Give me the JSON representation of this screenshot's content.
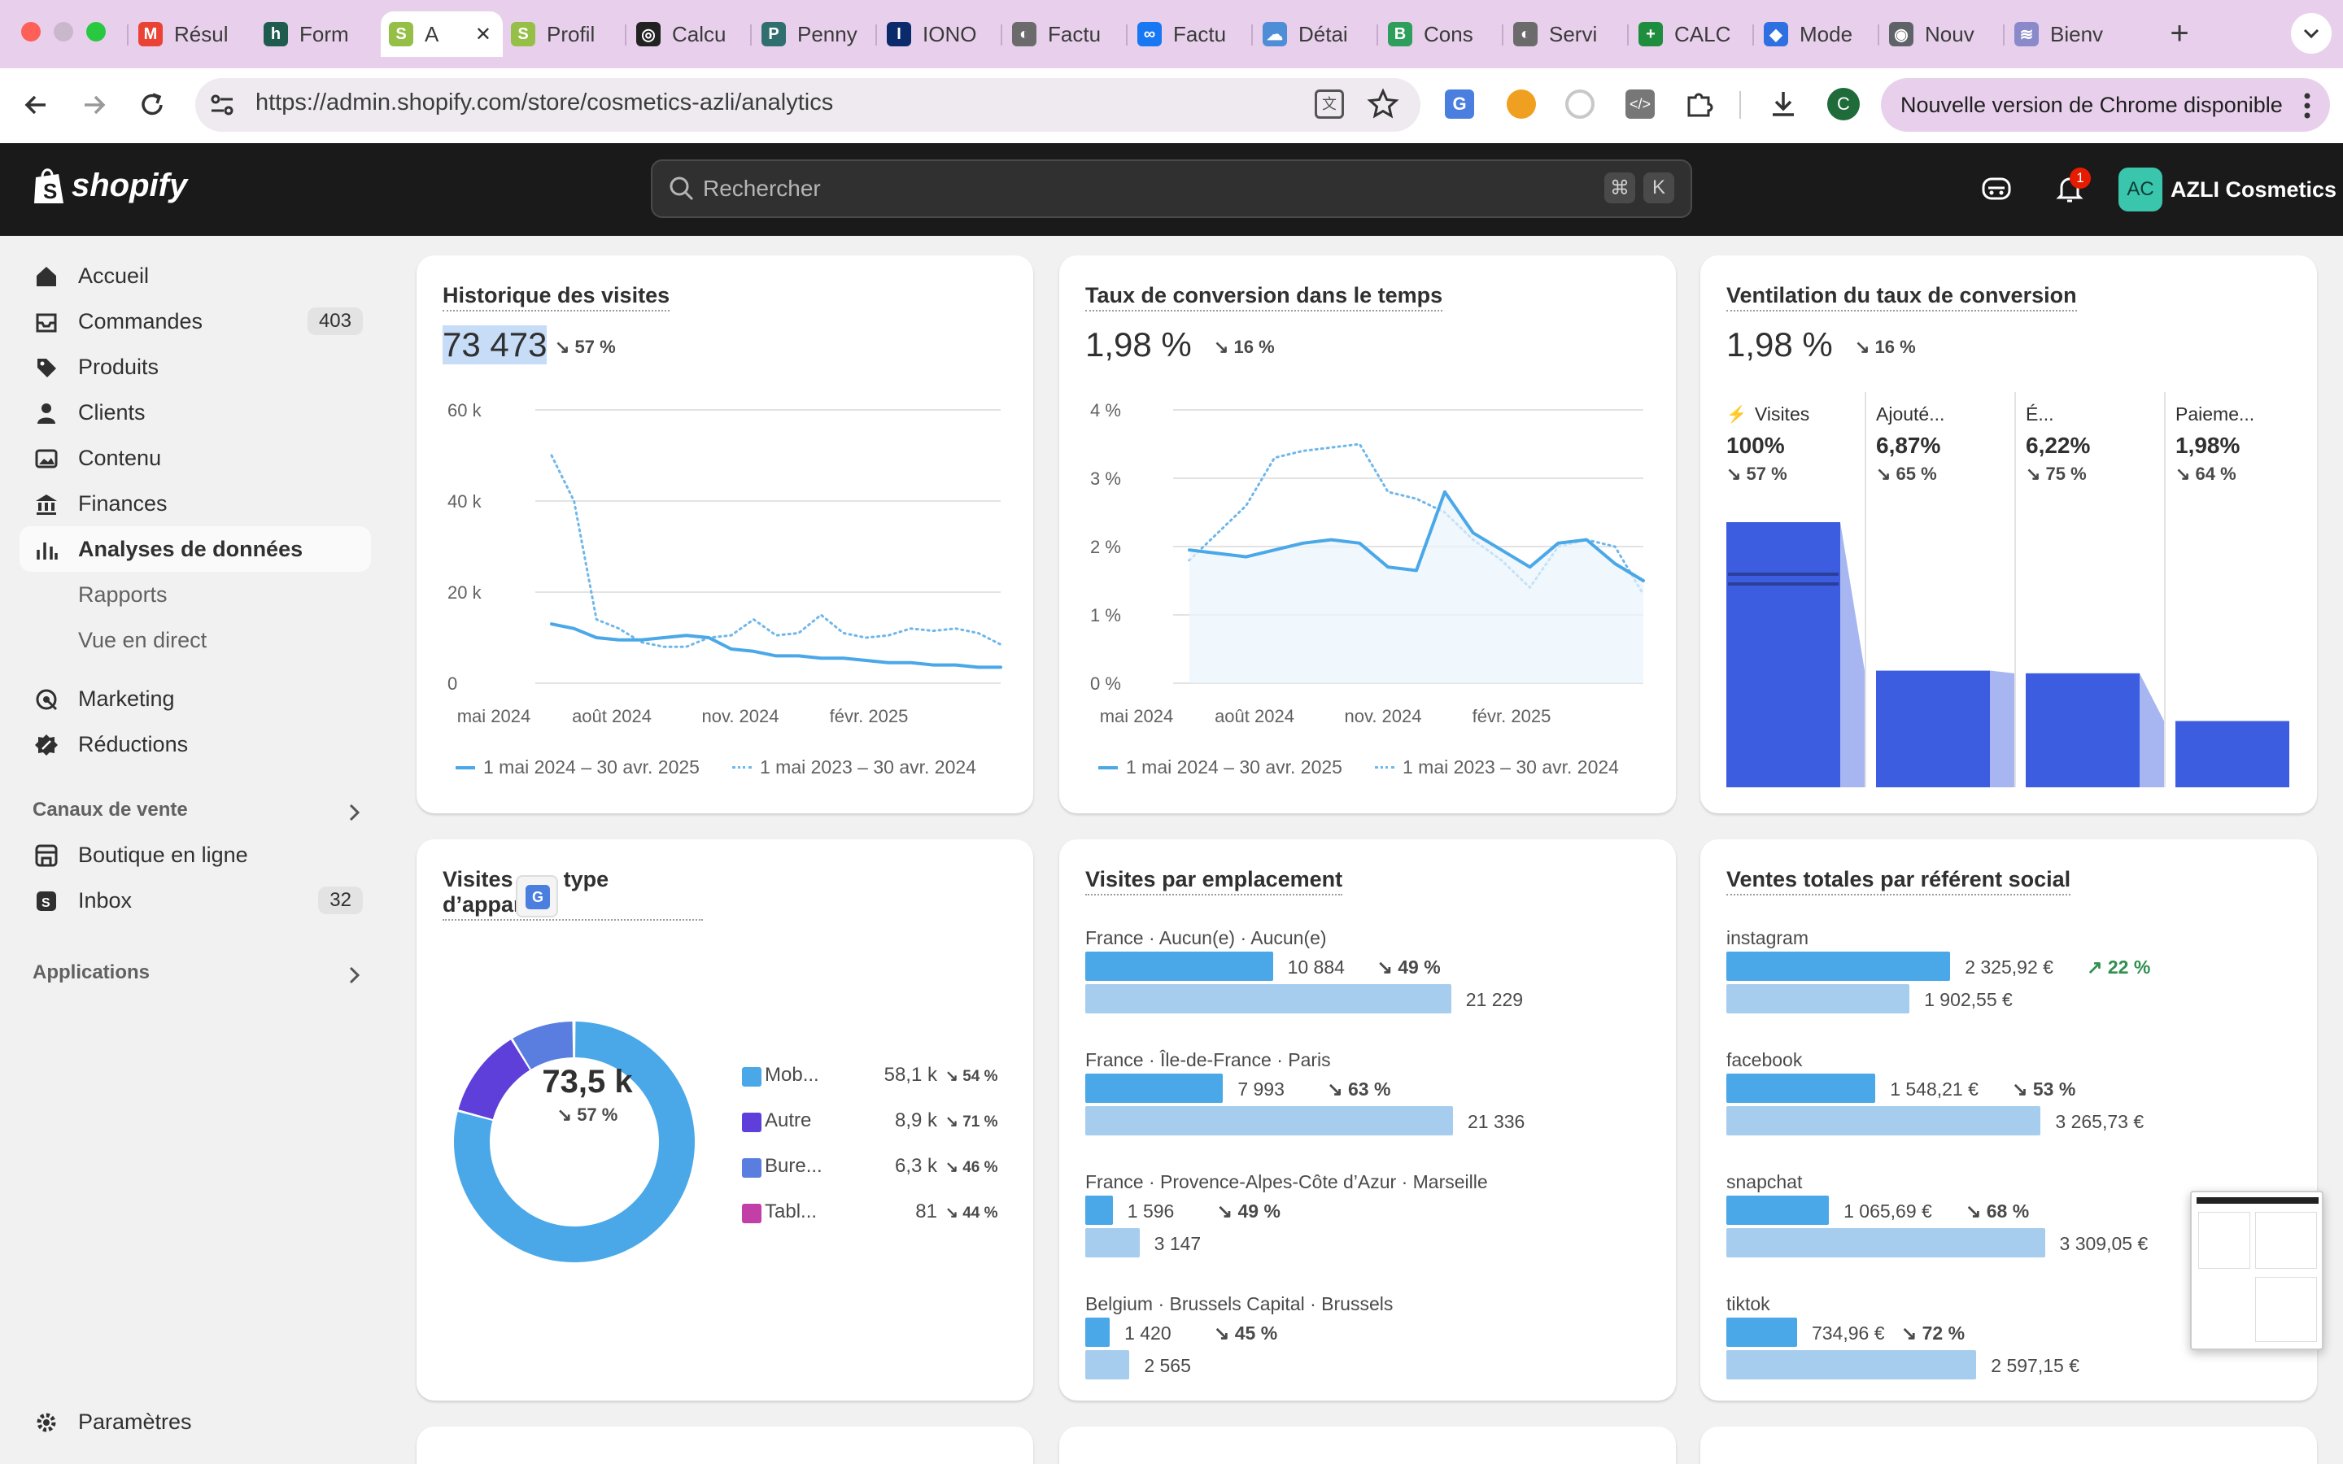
{
  "browser": {
    "tabs": [
      {
        "label": "Résul",
        "fav": "M",
        "color": "#ea4335"
      },
      {
        "label": "Form",
        "fav": "h",
        "color": "#1f5c4e"
      },
      {
        "label": "A",
        "fav": "S",
        "color": "#95bf47"
      },
      {
        "label": "Profil",
        "fav": "S",
        "color": "#95bf47"
      },
      {
        "label": "Calcu",
        "fav": "◎",
        "color": "#222222"
      },
      {
        "label": "Penny",
        "fav": "P",
        "color": "#2f6f6f"
      },
      {
        "label": "IONO",
        "fav": "I",
        "color": "#0b2a6b"
      },
      {
        "label": "Factu",
        "fav": "◐",
        "color": "#6b6b6b"
      },
      {
        "label": "Factu",
        "fav": "∞",
        "color": "#1877f2"
      },
      {
        "label": "Détai",
        "fav": "☁",
        "color": "#4f8ed6"
      },
      {
        "label": "Cons",
        "fav": "B",
        "color": "#2e9e5b"
      },
      {
        "label": "Servi",
        "fav": "◐",
        "color": "#6b6b6b"
      },
      {
        "label": "CALC",
        "fav": "+",
        "color": "#1e8e3e"
      },
      {
        "label": "Mode",
        "fav": "◆",
        "color": "#2f6fe0"
      },
      {
        "label": "Nouv",
        "fav": "◉",
        "color": "#5f6368"
      },
      {
        "label": "Bienv",
        "fav": "≋",
        "color": "#8a8acb"
      }
    ],
    "url": "https://admin.shopify.com/store/cosmetics-azli/analytics",
    "update_label": "Nouvelle version de Chrome disponible",
    "profile_initial": "C"
  },
  "shopify": {
    "logo_text": "shopify",
    "search_placeholder": "Rechercher",
    "kbd1": "⌘",
    "kbd2": "K",
    "notifications": "1",
    "store_initials": "AC",
    "store_name": "AZLI Cosmetics"
  },
  "sidebar": {
    "items": [
      {
        "label": "Accueil",
        "icon": "home-icon"
      },
      {
        "label": "Commandes",
        "icon": "orders-icon",
        "badge": "403"
      },
      {
        "label": "Produits",
        "icon": "tag-icon"
      },
      {
        "label": "Clients",
        "icon": "person-icon"
      },
      {
        "label": "Contenu",
        "icon": "content-icon"
      },
      {
        "label": "Finances",
        "icon": "bank-icon"
      },
      {
        "label": "Analyses de données",
        "icon": "analytics-icon"
      }
    ],
    "subitems": [
      "Rapports",
      "Vue en direct"
    ],
    "items2": [
      {
        "label": "Marketing",
        "icon": "target-icon"
      },
      {
        "label": "Réductions",
        "icon": "discount-icon"
      }
    ],
    "sales_channels": "Canaux de vente",
    "channels": [
      {
        "label": "Boutique en ligne",
        "icon": "store-icon"
      },
      {
        "label": "Inbox",
        "icon": "inbox-icon",
        "badge": "32"
      }
    ],
    "applications": "Applications",
    "settings": "Paramètres"
  },
  "cards": {
    "visits": {
      "title": "Historique des visites",
      "value": "73 473",
      "delta": "57 %",
      "legend_current": "1 mai 2024 – 30 avr. 2025",
      "legend_previous": "1 mai 2023 – 30 avr. 2024"
    },
    "conversion": {
      "title": "Taux de conversion dans le temps",
      "value": "1,98 %",
      "delta": "16 %",
      "legend_current": "1 mai 2024 – 30 avr. 2025",
      "legend_previous": "1 mai 2023 – 30 avr. 2024"
    },
    "funnel": {
      "title": "Ventilation du taux de conversion",
      "value": "1,98 %",
      "delta": "16 %",
      "steps": [
        {
          "label": "Visites",
          "value": "100%",
          "delta": "57 %",
          "fraction": 1
        },
        {
          "label": "Ajouté...",
          "value": "6,87%",
          "delta": "65 %",
          "fraction": 0.44
        },
        {
          "label": "É...",
          "value": "6,22%",
          "delta": "75 %",
          "fraction": 0.43
        },
        {
          "label": "Paieme...",
          "value": "1,98%",
          "delta": "64 %",
          "fraction": 0.25
        }
      ]
    },
    "devices": {
      "title_a": "Visites",
      "title_b": "type d’appareil",
      "center": "73,5 k",
      "center_delta": "57 %",
      "items": [
        {
          "label": "Mob...",
          "value": "58,1 k",
          "delta": "54 %",
          "color": "#4aa8e8"
        },
        {
          "label": "Autre",
          "value": "8,9 k",
          "delta": "71 %",
          "color": "#5f3fd9"
        },
        {
          "label": "Bure...",
          "value": "6,3 k",
          "delta": "46 %",
          "color": "#5a7ee0"
        },
        {
          "label": "Tabl...",
          "value": "81",
          "delta": "44 %",
          "color": "#c23fa8"
        }
      ]
    },
    "locations": {
      "title": "Visites par emplacement",
      "rows": [
        {
          "label": "France · Aucun(e) · Aucun(e)",
          "cur": "10 884",
          "prev": "21 229",
          "delta": "49 %"
        },
        {
          "label": "France · Île-de-France · Paris",
          "cur": "7 993",
          "prev": "21 336",
          "delta": "63 %"
        },
        {
          "label": "France · Provence-Alpes-Côte d’Azur · Marseille",
          "cur": "1 596",
          "prev": "3 147",
          "delta": "49 %"
        },
        {
          "label": "Belgium · Brussels Capital · Brussels",
          "cur": "1 420",
          "prev": "2 565",
          "delta": "45 %"
        }
      ]
    },
    "social": {
      "title": "Ventes totales par référent social",
      "rows": [
        {
          "label": "instagram",
          "cur": "2 325,92 €",
          "prev": "1 902,55 €",
          "delta": "22 %",
          "up": true
        },
        {
          "label": "facebook",
          "cur": "1 548,21 €",
          "prev": "3 265,73 €",
          "delta": "53 %",
          "up": false
        },
        {
          "label": "snapchat",
          "cur": "1 065,69 €",
          "prev": "3 309,05 €",
          "delta": "68 %",
          "up": false
        },
        {
          "label": "tiktok",
          "cur": "734,96 €",
          "prev": "2 597,15 €",
          "delta": "72 %",
          "up": false
        }
      ]
    }
  },
  "chart_data": [
    {
      "type": "line",
      "title": "Historique des visites",
      "x_ticks": [
        "mai 2024",
        "août 2024",
        "nov. 2024",
        "févr. 2025"
      ],
      "y_ticks": [
        "60 k",
        "40 k",
        "20 k",
        "0"
      ],
      "ylim": [
        0,
        60000
      ],
      "series": [
        {
          "name": "1 mai 2024 – 30 avr. 2025",
          "values": [
            13000,
            12000,
            10000,
            9500,
            9500,
            10000,
            10500,
            10000,
            7500,
            7000,
            6000,
            6000,
            5500,
            5500,
            5000,
            4500,
            4500,
            4000,
            4000,
            3500,
            3500
          ]
        },
        {
          "name": "1 mai 2023 – 30 avr. 2024",
          "values": [
            50000,
            40000,
            14000,
            12000,
            9000,
            8000,
            8000,
            10000,
            10500,
            14000,
            10500,
            11000,
            15000,
            11000,
            10000,
            10500,
            12000,
            11500,
            12000,
            11000,
            8500
          ]
        }
      ]
    },
    {
      "type": "line",
      "title": "Taux de conversion dans le temps",
      "x_ticks": [
        "mai 2024",
        "août 2024",
        "nov. 2024",
        "févr. 2025"
      ],
      "y_ticks": [
        "4 %",
        "3 %",
        "2 %",
        "1 %",
        "0 %"
      ],
      "ylim": [
        0,
        4
      ],
      "series": [
        {
          "name": "1 mai 2024 – 30 avr. 2025",
          "values": [
            1.95,
            1.9,
            1.85,
            1.95,
            2.05,
            2.1,
            2.05,
            1.7,
            1.65,
            2.8,
            2.2,
            1.95,
            1.7,
            2.05,
            2.1,
            1.75,
            1.5
          ]
        },
        {
          "name": "1 mai 2023 – 30 avr. 2024",
          "values": [
            1.8,
            2.2,
            2.6,
            3.3,
            3.4,
            3.45,
            3.5,
            2.8,
            2.7,
            2.5,
            2.1,
            1.8,
            1.4,
            2.0,
            2.1,
            2.0,
            1.3
          ]
        }
      ]
    },
    {
      "type": "bar",
      "title": "Ventilation du taux de conversion",
      "categories": [
        "Visites",
        "Ajouté...",
        "É...",
        "Paieme..."
      ],
      "values": [
        100,
        6.87,
        6.22,
        1.98
      ]
    },
    {
      "type": "pie",
      "title": "",
      "categories": [
        "Mob...",
        "Autre",
        "Bure...",
        "Tabl..."
      ],
      "values": [
        58100,
        8900,
        6300,
        81
      ]
    },
    {
      "type": "bar",
      "title": "Visites par emplacement",
      "categories": [
        "France · Aucun(e) · Aucun(e)",
        "France · Île-de-France · Paris",
        "France · Provence-Alpes-Côte d’Azur · Marseille",
        "Belgium · Brussels Capital · Brussels"
      ],
      "series": [
        {
          "name": "",
          "values": [
            10884,
            7993,
            1596,
            1420
          ]
        },
        {
          "name": "",
          "values": [
            21229,
            21336,
            3147,
            2565
          ]
        }
      ]
    },
    {
      "type": "bar",
      "title": "Ventes totales par référent social",
      "categories": [
        "instagram",
        "facebook",
        "snapchat",
        "tiktok"
      ],
      "series": [
        {
          "name": "",
          "values": [
            2325.92,
            1548.21,
            1065.69,
            734.96
          ]
        },
        {
          "name": "",
          "values": [
            1902.55,
            3265.73,
            3309.05,
            2597.15
          ]
        }
      ]
    }
  ]
}
